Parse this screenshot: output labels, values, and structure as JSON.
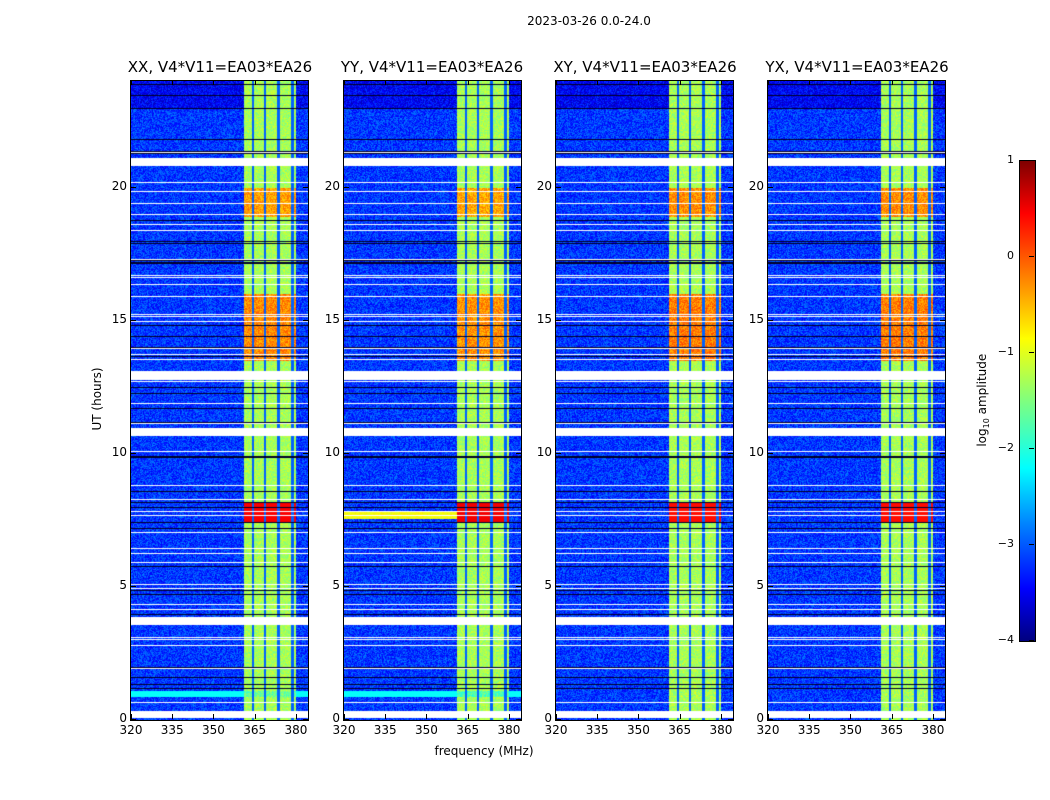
{
  "suptitle": "2023-03-26 0.0-24.0",
  "chart_data": {
    "type": "heatmap",
    "title": "2023-03-26 0.0-24.0",
    "xlabel": "frequency (MHz)",
    "ylabel": "UT (hours)",
    "xlim": [
      320,
      384.4
    ],
    "ylim": [
      0,
      24
    ],
    "xticks": [
      320,
      335,
      350,
      365,
      380
    ],
    "yticks": [
      0,
      5,
      10,
      15,
      20
    ],
    "panels": [
      {
        "title": "XX, V4*V11=EA03*EA26",
        "hot_scale": 1.0,
        "rfi_line_7_7h": false
      },
      {
        "title": "YY, V4*V11=EA03*EA26",
        "hot_scale": 1.1,
        "rfi_line_7_7h": true
      },
      {
        "title": "XY, V4*V11=EA03*EA26",
        "hot_scale": 0.8,
        "rfi_line_7_7h": false
      },
      {
        "title": "YX, V4*V11=EA03*EA26",
        "hot_scale": 0.8,
        "rfi_line_7_7h": false
      }
    ],
    "background_log_amp": -3.1,
    "band": {
      "freq_range_mhz": [
        361,
        380
      ],
      "log_amp": -1.3,
      "gap_freqs_mhz": [
        364.3,
        368.5,
        373.5,
        378.5
      ]
    },
    "hot_intervals_hours": [
      [
        7.4,
        8.2,
        0.4
      ],
      [
        13.5,
        16.0,
        -0.3
      ],
      [
        18.9,
        20.0,
        -0.4
      ],
      [
        0.9,
        1.1,
        -1.6
      ]
    ],
    "flagged_intervals_hours": [
      [
        0.15,
        0.35
      ],
      [
        3.6,
        3.85
      ],
      [
        10.7,
        10.95
      ],
      [
        12.85,
        13.1
      ],
      [
        20.85,
        21.1
      ]
    ],
    "dark_lines_hours": [
      1.2,
      1.6,
      2.0,
      4.0,
      4.9,
      5.8,
      8.2,
      8.6,
      9.9,
      11.2,
      11.7,
      12.3,
      17.2,
      21.3,
      23.0
    ],
    "colorbar": {
      "label_prefix": "log",
      "label_sub": "10",
      "label_suffix": " amplitude",
      "range": [
        -4,
        1
      ],
      "ticks": [
        "1",
        "0",
        "−1",
        "−2",
        "−3",
        "−4"
      ]
    }
  }
}
